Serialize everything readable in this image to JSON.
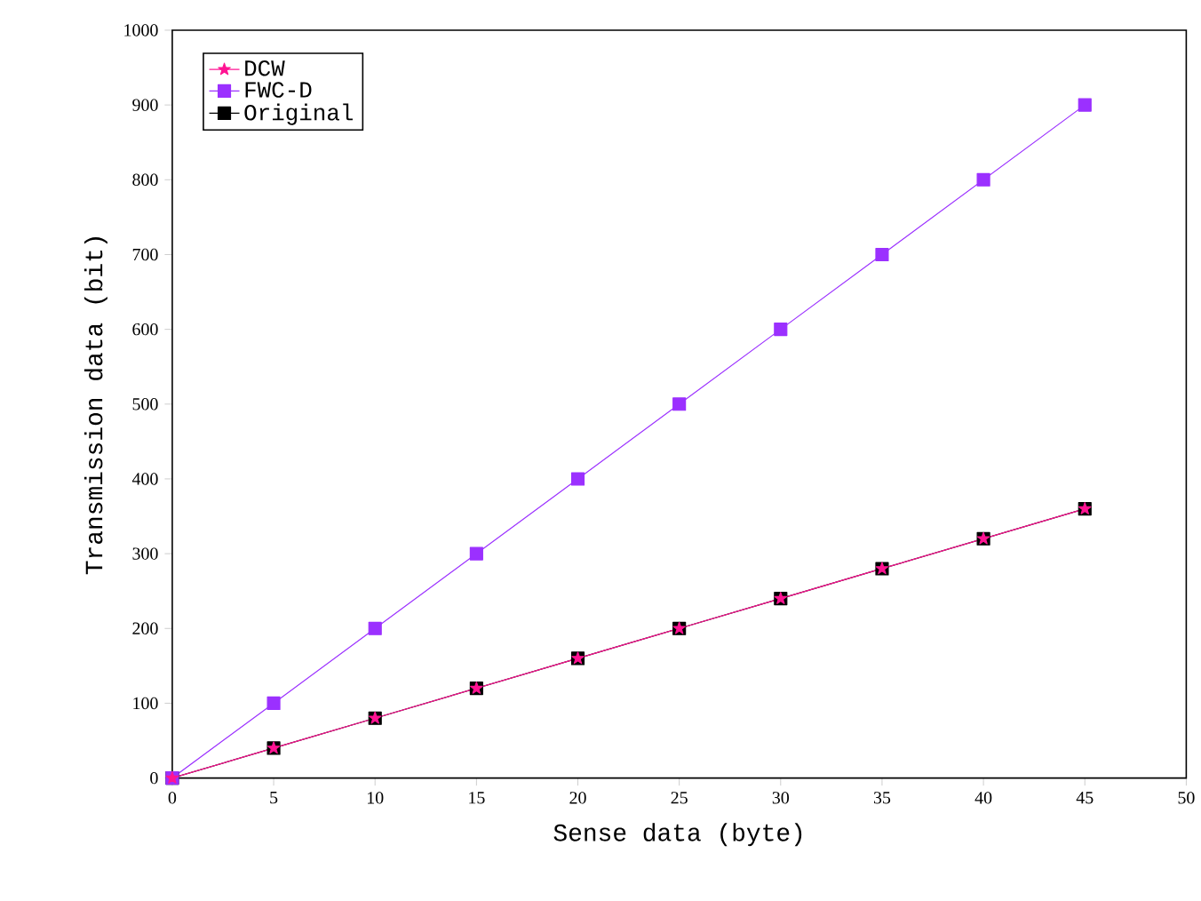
{
  "chart_data": {
    "type": "line",
    "xlabel": "Sense data (byte)",
    "ylabel": "Transmission data (bit)",
    "x": [
      0,
      5,
      10,
      15,
      20,
      25,
      30,
      35,
      40,
      45
    ],
    "series": [
      {
        "name": "DCW",
        "color": "#ff1493",
        "marker": "star",
        "values": [
          0,
          40,
          80,
          120,
          160,
          200,
          240,
          280,
          320,
          360
        ]
      },
      {
        "name": "FWC-D",
        "color": "#9b30ff",
        "marker": "square",
        "values": [
          0,
          100,
          200,
          300,
          400,
          500,
          600,
          700,
          800,
          900
        ]
      },
      {
        "name": "Original",
        "color": "#000000",
        "marker": "square",
        "values": [
          0,
          40,
          80,
          120,
          160,
          200,
          240,
          280,
          320,
          360
        ]
      }
    ],
    "xlim": [
      0,
      50
    ],
    "ylim": [
      0,
      1000
    ],
    "xticks": [
      0,
      5,
      10,
      15,
      20,
      25,
      30,
      35,
      40,
      45,
      50
    ],
    "yticks": [
      0,
      100,
      200,
      300,
      400,
      500,
      600,
      700,
      800,
      900,
      1000
    ],
    "legend": "top left",
    "grid": false,
    "line_style": "solid"
  }
}
